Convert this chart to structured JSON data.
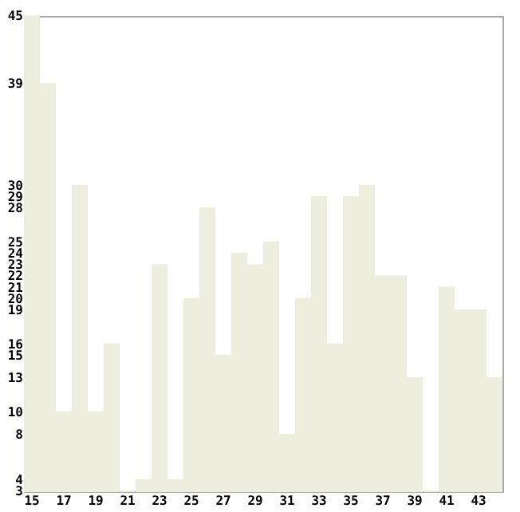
{
  "chart_data": {
    "type": "bar",
    "categories": [
      "15",
      null,
      "17",
      null,
      "19",
      null,
      "21",
      null,
      "23",
      null,
      "25",
      null,
      "27",
      null,
      "29",
      null,
      "31",
      null,
      "33",
      null,
      "35",
      null,
      "37",
      null,
      "39",
      null,
      "41",
      null,
      "43",
      null
    ],
    "values": [
      45,
      39,
      10,
      30,
      10,
      16,
      3,
      4,
      23,
      4,
      20,
      28,
      15,
      24,
      23,
      25,
      8,
      20,
      29,
      16,
      29,
      30,
      22,
      22,
      13,
      3,
      21,
      19,
      19,
      13
    ],
    "color": "#eeeedf",
    "ylim": [
      3,
      45
    ],
    "yticks": [
      3,
      4,
      8,
      10,
      13,
      15,
      16,
      19,
      20,
      21,
      22,
      23,
      24,
      25,
      28,
      29,
      30,
      39,
      45
    ],
    "grid": false
  }
}
